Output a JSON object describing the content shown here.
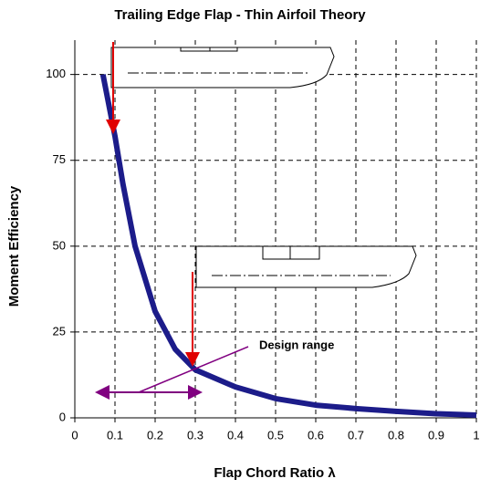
{
  "chart_data": {
    "type": "line",
    "title": "Trailing Edge Flap - Thin Airfoil Theory",
    "x_label": "Flap Chord Ratio λ",
    "y_label": "Moment Efficiency",
    "annotation": "Design range",
    "x": [
      0.07,
      0.08,
      0.1,
      0.12,
      0.15,
      0.2,
      0.25,
      0.3,
      0.4,
      0.5,
      0.6,
      0.7,
      0.8,
      0.9,
      1.0
    ],
    "series": [
      {
        "name": "Moment Efficiency",
        "color": "#1c1c8a",
        "values": [
          100,
          94,
          82,
          68,
          50,
          31,
          20,
          14,
          9,
          5.6,
          3.7,
          2.7,
          1.9,
          1.2,
          0.8
        ]
      }
    ],
    "xlim": [
      0,
      1
    ],
    "xticks": [
      0,
      0.1,
      0.2,
      0.3,
      0.4,
      0.5,
      0.6,
      0.7,
      0.8,
      0.9,
      1
    ],
    "ylim": [
      0,
      110
    ],
    "yticks": [
      0,
      25,
      50,
      75,
      100
    ],
    "grid": true
  }
}
